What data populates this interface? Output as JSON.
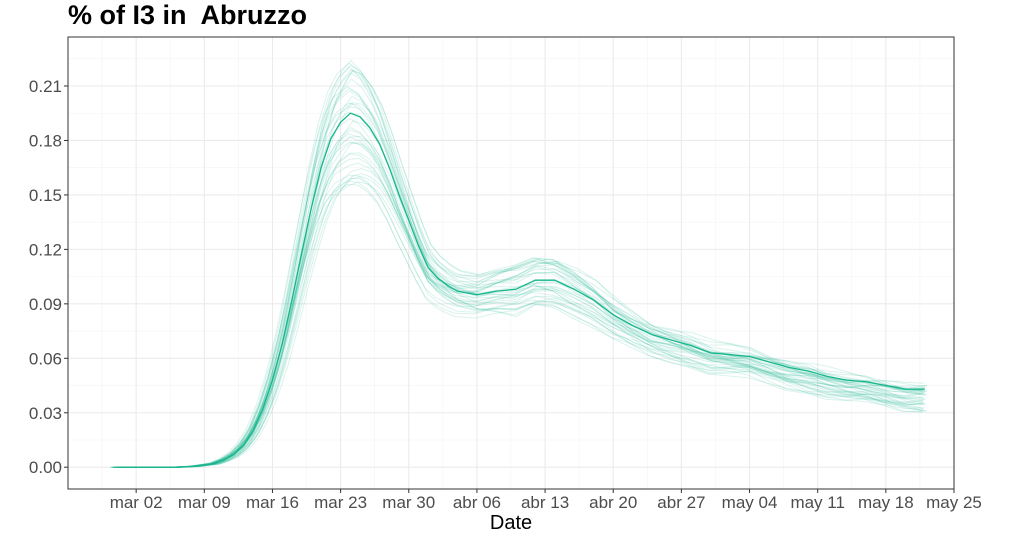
{
  "title": "% of I3 in  Abruzzo",
  "chart_data": {
    "type": "line",
    "title": "% of I3 in  Abruzzo",
    "xlabel": "Date",
    "ylabel": "",
    "x_start": "2020-02-29",
    "x_end": "2020-05-22",
    "xlim": [
      "2020-02-24",
      "2020-05-25"
    ],
    "ylim": [
      -0.012,
      0.237
    ],
    "x_ticks": [
      {
        "date": "2020-03-02",
        "label": "mar 02"
      },
      {
        "date": "2020-03-09",
        "label": "mar 09"
      },
      {
        "date": "2020-03-16",
        "label": "mar 16"
      },
      {
        "date": "2020-03-23",
        "label": "mar 23"
      },
      {
        "date": "2020-03-30",
        "label": "mar 30"
      },
      {
        "date": "2020-04-06",
        "label": "abr 06"
      },
      {
        "date": "2020-04-13",
        "label": "abr 13"
      },
      {
        "date": "2020-04-20",
        "label": "abr 20"
      },
      {
        "date": "2020-04-27",
        "label": "abr 27"
      },
      {
        "date": "2020-05-04",
        "label": "may 04"
      },
      {
        "date": "2020-05-11",
        "label": "may 11"
      },
      {
        "date": "2020-05-18",
        "label": "may 18"
      },
      {
        "date": "2020-05-25",
        "label": "may 25"
      }
    ],
    "y_ticks": [
      0.0,
      0.03,
      0.06,
      0.09,
      0.12,
      0.15,
      0.18,
      0.21
    ],
    "y_tick_labels": [
      "0.00",
      "0.03",
      "0.06",
      "0.09",
      "0.12",
      "0.15",
      "0.18",
      "0.21"
    ],
    "grid": true,
    "line_color": "#16b68c",
    "main_series": {
      "points": [
        [
          "2020-02-29",
          0.0
        ],
        [
          "2020-03-03",
          0.0
        ],
        [
          "2020-03-06",
          0.0
        ],
        [
          "2020-03-08",
          0.0005
        ],
        [
          "2020-03-10",
          0.002
        ],
        [
          "2020-03-11",
          0.004
        ],
        [
          "2020-03-12",
          0.007
        ],
        [
          "2020-03-13",
          0.012
        ],
        [
          "2020-03-14",
          0.02
        ],
        [
          "2020-03-15",
          0.032
        ],
        [
          "2020-03-16",
          0.048
        ],
        [
          "2020-03-17",
          0.068
        ],
        [
          "2020-03-18",
          0.092
        ],
        [
          "2020-03-19",
          0.118
        ],
        [
          "2020-03-20",
          0.143
        ],
        [
          "2020-03-21",
          0.165
        ],
        [
          "2020-03-22",
          0.181
        ],
        [
          "2020-03-23",
          0.19
        ],
        [
          "2020-03-24",
          0.195
        ],
        [
          "2020-03-25",
          0.193
        ],
        [
          "2020-03-26",
          0.187
        ],
        [
          "2020-03-27",
          0.178
        ],
        [
          "2020-03-28",
          0.165
        ],
        [
          "2020-03-29",
          0.15
        ],
        [
          "2020-03-30",
          0.136
        ],
        [
          "2020-03-31",
          0.122
        ],
        [
          "2020-04-01",
          0.11
        ],
        [
          "2020-04-02",
          0.104
        ],
        [
          "2020-04-03",
          0.1
        ],
        [
          "2020-04-04",
          0.097
        ],
        [
          "2020-04-05",
          0.096
        ],
        [
          "2020-04-06",
          0.095
        ],
        [
          "2020-04-08",
          0.097
        ],
        [
          "2020-04-10",
          0.098
        ],
        [
          "2020-04-12",
          0.103
        ],
        [
          "2020-04-14",
          0.103
        ],
        [
          "2020-04-16",
          0.098
        ],
        [
          "2020-04-18",
          0.092
        ],
        [
          "2020-04-20",
          0.084
        ],
        [
          "2020-04-22",
          0.078
        ],
        [
          "2020-04-24",
          0.073
        ],
        [
          "2020-04-26",
          0.07
        ],
        [
          "2020-04-28",
          0.067
        ],
        [
          "2020-04-30",
          0.063
        ],
        [
          "2020-05-02",
          0.062
        ],
        [
          "2020-05-04",
          0.061
        ],
        [
          "2020-05-06",
          0.058
        ],
        [
          "2020-05-08",
          0.055
        ],
        [
          "2020-05-10",
          0.053
        ],
        [
          "2020-05-12",
          0.05
        ],
        [
          "2020-05-14",
          0.048
        ],
        [
          "2020-05-16",
          0.047
        ],
        [
          "2020-05-18",
          0.045
        ],
        [
          "2020-05-19",
          0.044
        ],
        [
          "2020-05-20",
          0.043
        ],
        [
          "2020-05-22",
          0.043
        ]
      ]
    },
    "ensemble": {
      "count": 40,
      "peak_range": [
        0.155,
        0.227
      ],
      "plateau_range": [
        0.083,
        0.114
      ],
      "end_range": [
        0.031,
        0.045
      ]
    }
  }
}
